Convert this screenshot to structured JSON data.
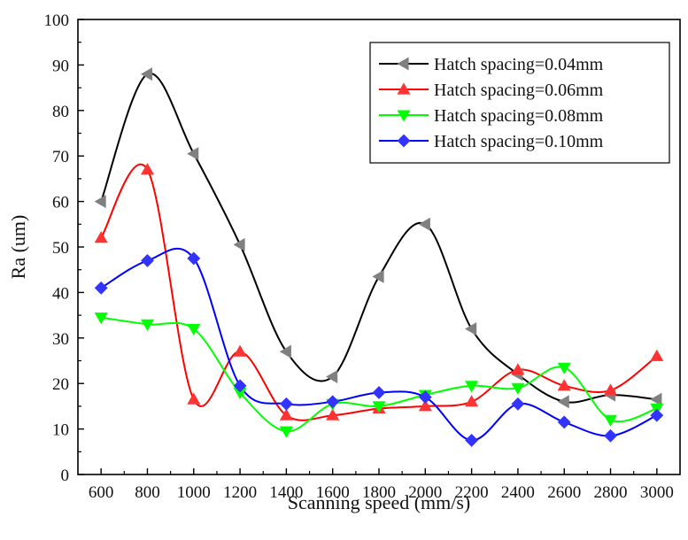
{
  "chart_data": {
    "type": "scatter",
    "title": "",
    "xlabel": "Scanning speed (mm/s)",
    "ylabel": "Ra (um)",
    "xlim": [
      500,
      3100
    ],
    "ylim": [
      0,
      100
    ],
    "xticks": [
      600,
      800,
      1000,
      1200,
      1400,
      1600,
      1800,
      2000,
      2200,
      2400,
      2600,
      2800,
      3000
    ],
    "yticks": [
      0,
      10,
      20,
      30,
      40,
      50,
      60,
      70,
      80,
      90,
      100
    ],
    "grid": false,
    "legend_position": "top-right",
    "x": [
      600,
      800,
      1000,
      1200,
      1400,
      1600,
      1800,
      2000,
      2200,
      2400,
      2600,
      2800,
      3000
    ],
    "series": [
      {
        "name": "Hatch spacing=0.04mm",
        "color": "#000000",
        "marker_color": "#808080",
        "marker": "triangle-left",
        "values": [
          60,
          88,
          70.5,
          50.5,
          27,
          21.5,
          43.5,
          55,
          32,
          22,
          16,
          17.5,
          16.5
        ]
      },
      {
        "name": "Hatch spacing=0.06mm",
        "color": "#ff0000",
        "marker_color": "#ff3333",
        "marker": "triangle-up",
        "values": [
          52,
          67,
          16.5,
          27,
          13,
          13,
          14.5,
          15,
          16,
          23,
          19.5,
          18.5,
          26
        ]
      },
      {
        "name": "Hatch spacing=0.08mm",
        "color": "#00ff00",
        "marker_color": "#00ff00",
        "marker": "triangle-down",
        "values": [
          34.5,
          33,
          32,
          18,
          9.5,
          15.5,
          15,
          17.5,
          19.5,
          19,
          23.5,
          12,
          14.5
        ]
      },
      {
        "name": "Hatch spacing=0.10mm",
        "color": "#0000ff",
        "marker_color": "#3333ff",
        "marker": "diamond",
        "values": [
          41,
          47,
          47.5,
          19.5,
          15.5,
          16,
          18,
          17,
          7.5,
          15.5,
          11.5,
          8.5,
          13
        ]
      }
    ]
  }
}
